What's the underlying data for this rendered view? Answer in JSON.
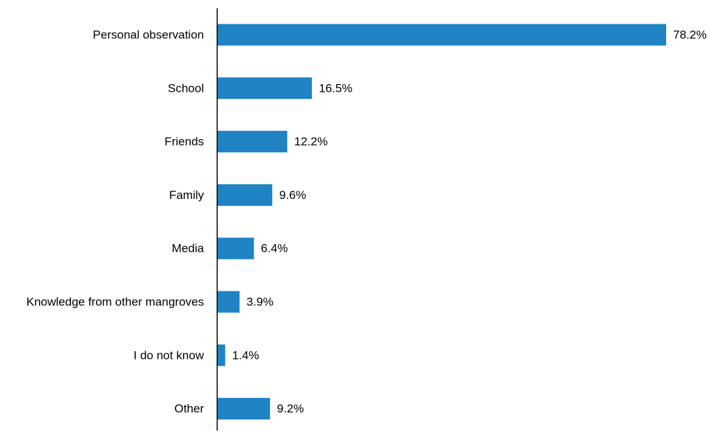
{
  "chart_data": {
    "type": "bar",
    "orientation": "horizontal",
    "categories": [
      "Personal observation",
      "School",
      "Friends",
      "Family",
      "Media",
      "Knowledge from other mangroves",
      "I do not know",
      "Other"
    ],
    "values": [
      78.2,
      16.5,
      12.2,
      9.6,
      6.4,
      3.9,
      1.4,
      9.2
    ],
    "value_labels": [
      "78.2%",
      "16.5%",
      "12.2%",
      "9.6%",
      "6.4%",
      "3.9%",
      "1.4%",
      "9.2%"
    ],
    "xlim": [
      0,
      78.2
    ],
    "grid": false,
    "legend": "none",
    "bar_color": "#1f83c4",
    "axis_color": "#000000"
  }
}
